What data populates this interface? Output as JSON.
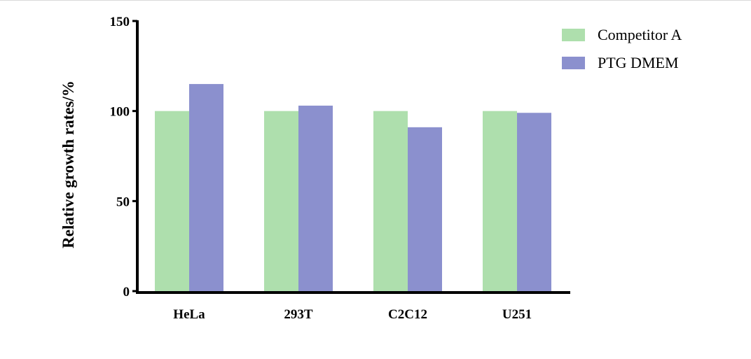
{
  "chart_data": {
    "type": "bar",
    "title": "",
    "xlabel": "",
    "ylabel": "Relative growth rates/%",
    "categories": [
      "HeLa",
      "293T",
      "C2C12",
      "U251"
    ],
    "series": [
      {
        "name": "Competitor A",
        "values": [
          100,
          100,
          100,
          100
        ],
        "color": "#aedfad"
      },
      {
        "name": "PTG DMEM",
        "values": [
          115,
          103,
          91,
          99
        ],
        "color": "#8b90ce"
      }
    ],
    "ylim": [
      0,
      150
    ],
    "yticks": [
      0,
      50,
      100,
      150
    ],
    "grid": false,
    "legend_position": "top-right"
  }
}
